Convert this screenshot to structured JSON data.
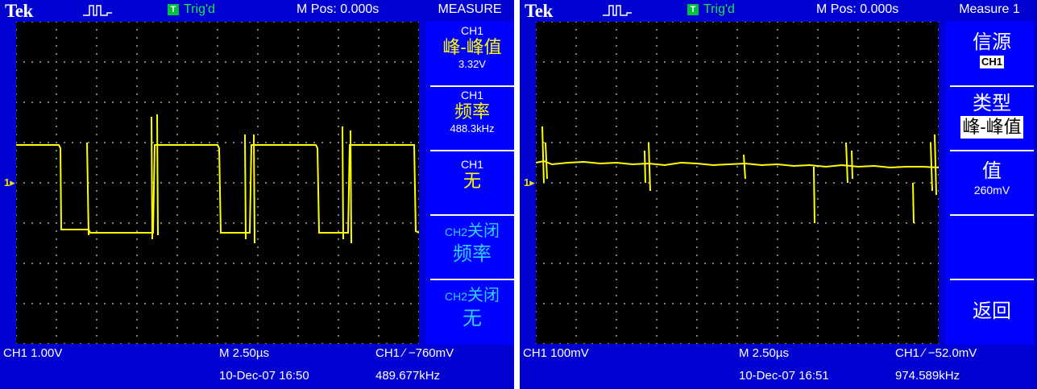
{
  "colors": {
    "trace": "#ffff00",
    "frame": "#0000d0",
    "accent": "#30d0ff",
    "trig": "#00c040"
  },
  "left": {
    "brand": "Tek",
    "trig_box": "T",
    "trig_status": "Trig'd",
    "m_pos": "M Pos: 0.000s",
    "menu_title": "MEASURE",
    "channel_marker": "1",
    "measurements": [
      {
        "source": "CH1",
        "type": "峰-峰值",
        "value": "3.32V"
      },
      {
        "source": "CH1",
        "type": "频率",
        "value": "488.3kHz"
      },
      {
        "source": "CH1",
        "type": "无",
        "value": ""
      },
      {
        "source": "CH2",
        "source_suffix": "关闭",
        "type": "频率"
      },
      {
        "source": "CH2",
        "source_suffix": "关闭",
        "type": "无"
      }
    ],
    "footer": {
      "ch_scale": "CH1  1.00V",
      "timebase": "M 2.50µs",
      "trigger": "CH1  ∕  −760mV",
      "date": "10-Dec-07 16:50",
      "freq": "489.677kHz"
    }
  },
  "right": {
    "brand": "Tek",
    "trig_box": "T",
    "trig_status": "Trig'd",
    "m_pos": "M Pos: 0.000s",
    "menu_title": "Measure 1",
    "channel_marker": "1",
    "menu": {
      "source_label": "信源",
      "source_value": "CH1",
      "type_label": "类型",
      "type_value": "峰-峰值",
      "value_label": "值",
      "value": "260mV",
      "back": "返回"
    },
    "footer": {
      "ch_scale": "CH1  100mV",
      "timebase": "M 2.50µs",
      "trigger": "CH1  ∕  −52.0mV",
      "date": "10-Dec-07 16:51",
      "freq": "974.589kHz"
    }
  }
}
